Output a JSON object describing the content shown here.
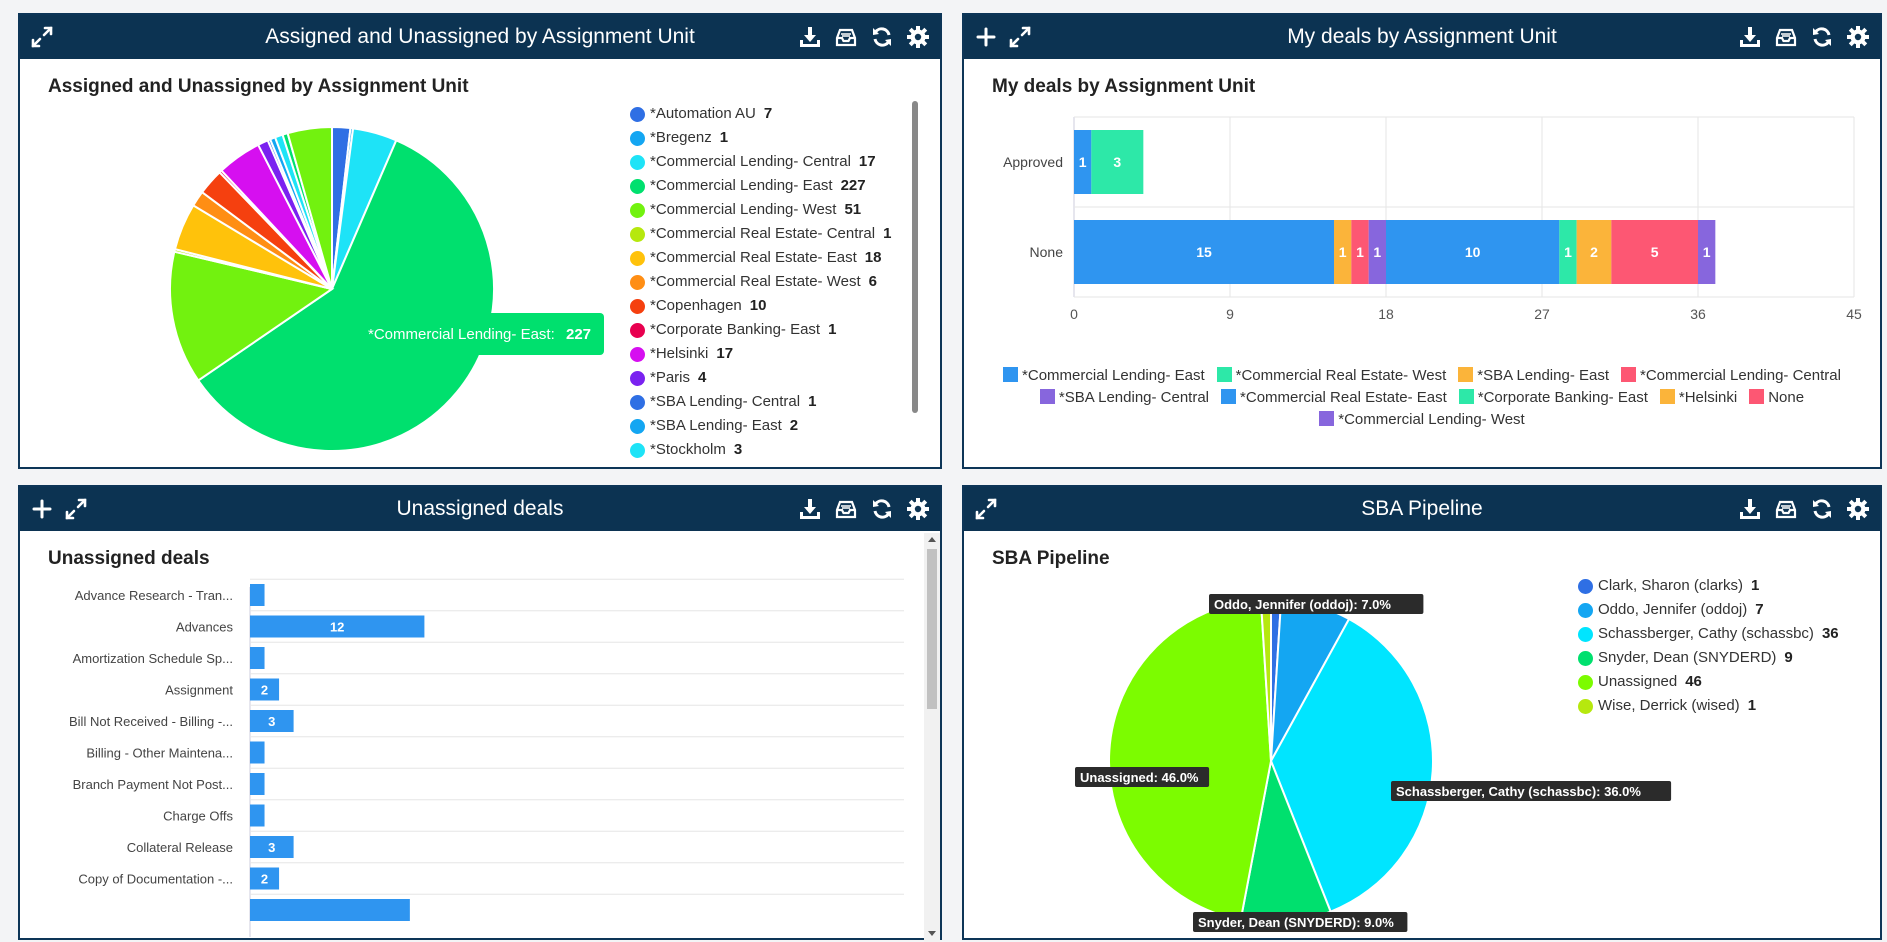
{
  "panels": {
    "p1": {
      "title": "Assigned and Unassigned by Assignment Unit",
      "chart_title": "Assigned and Unassigned by Assignment Unit"
    },
    "p2": {
      "title": "My deals by Assignment Unit",
      "chart_title": "My deals by Assignment Unit"
    },
    "p3": {
      "title": "Unassigned deals",
      "chart_title": "Unassigned deals"
    },
    "p4": {
      "title": "SBA Pipeline",
      "chart_title": "SBA Pipeline"
    }
  },
  "icons": {
    "expand": "expand-icon",
    "add": "plus-icon",
    "download": "download-icon",
    "inbox": "inbox-icon",
    "refresh": "refresh-icon",
    "settings": "gear-icon"
  },
  "chart_data": [
    {
      "type": "pie",
      "title": "Assigned and Unassigned by Assignment Unit",
      "legend_position": "right",
      "tooltip": {
        "label": "*Commercial Lending- East:",
        "value": "227"
      },
      "slices": [
        {
          "label": "*Automation AU",
          "value": 7,
          "color": "#2f6fe4"
        },
        {
          "label": "*Bregenz",
          "value": 1,
          "color": "#14a6f2"
        },
        {
          "label": "*Commercial Lending- Central",
          "value": 17,
          "color": "#1ee3f7"
        },
        {
          "label": "*Commercial Lending- East",
          "value": 227,
          "color": "#00e06e"
        },
        {
          "label": "*Commercial Lending- West",
          "value": 51,
          "color": "#72f20f"
        },
        {
          "label": "*Commercial Real Estate- Central",
          "value": 1,
          "color": "#b6e80e"
        },
        {
          "label": "*Commercial Real Estate- East",
          "value": 18,
          "color": "#ffc20b"
        },
        {
          "label": "*Commercial Real Estate- West",
          "value": 6,
          "color": "#ff8e14"
        },
        {
          "label": "*Copenhagen",
          "value": 10,
          "color": "#f5400f"
        },
        {
          "label": "*Corporate Banking- East",
          "value": 1,
          "color": "#e8004f"
        },
        {
          "label": "*Helsinki",
          "value": 17,
          "color": "#d60ff0"
        },
        {
          "label": "*Paris",
          "value": 4,
          "color": "#7a22f0"
        },
        {
          "label": "*SBA Lending- Central",
          "value": 1,
          "color": "#2f6fe4"
        },
        {
          "label": "*SBA Lending- East",
          "value": 2,
          "color": "#14a6f2"
        },
        {
          "label": "*Stockholm",
          "value": 3,
          "color": "#1ee3f7"
        },
        {
          "label": "",
          "value": 2,
          "color": "#00e06e"
        },
        {
          "label": "",
          "value": 17,
          "color": "#72f20f"
        }
      ]
    },
    {
      "type": "bar",
      "orientation": "horizontal",
      "stacked": true,
      "title": "My deals by Assignment Unit",
      "categories": [
        "Approved",
        "None"
      ],
      "xlim": [
        0,
        45
      ],
      "xticks": [
        0,
        9,
        18,
        27,
        36,
        45
      ],
      "legend_position": "bottom",
      "series": [
        {
          "name": "*Commercial Lending- East",
          "values": [
            1,
            15
          ],
          "color": "#2f95f0"
        },
        {
          "name": "*Commercial Real Estate- West",
          "values": [
            3,
            0
          ],
          "color": "#2de8a8"
        },
        {
          "name": "*SBA Lending- East",
          "values": [
            0,
            1
          ],
          "color": "#fbb43a"
        },
        {
          "name": "*Commercial Lending- Central",
          "values": [
            0,
            1
          ],
          "color": "#fd5773"
        },
        {
          "name": "*SBA Lending- Central",
          "values": [
            0,
            1
          ],
          "color": "#8766dd"
        },
        {
          "name": "*Commercial Real Estate- East",
          "values": [
            0,
            10
          ],
          "color": "#2f95f0"
        },
        {
          "name": "*Corporate Banking- East",
          "values": [
            0,
            1
          ],
          "color": "#2de8a8"
        },
        {
          "name": "*Helsinki",
          "values": [
            0,
            2
          ],
          "color": "#fbb43a"
        },
        {
          "name": "None",
          "values": [
            0,
            5
          ],
          "color": "#fd5773"
        },
        {
          "name": "*Commercial Lending- West",
          "values": [
            0,
            1
          ],
          "color": "#8766dd"
        }
      ]
    },
    {
      "type": "bar",
      "orientation": "horizontal",
      "title": "Unassigned deals",
      "xmax": 45,
      "bar_color": "#2f95f0",
      "categories": [
        "Advance Research - Tran...",
        "Advances",
        "Amortization Schedule Sp...",
        "Assignment",
        "Bill Not Received - Billing -...",
        "Billing - Other Maintena...",
        "Branch Payment Not Post...",
        "Charge Offs",
        "Collateral Release",
        "Copy of Documentation -...",
        ""
      ],
      "values": [
        1,
        12,
        1,
        2,
        3,
        1,
        1,
        1,
        3,
        2,
        11
      ],
      "data_labels": [
        "",
        "12",
        "",
        "2",
        "3",
        "",
        "",
        "",
        "3",
        "2",
        ""
      ]
    },
    {
      "type": "pie",
      "title": "SBA Pipeline",
      "legend_position": "right",
      "slices": [
        {
          "label": "Clark, Sharon (clarks)",
          "value": 1,
          "color": "#2f6fe4",
          "callout": ""
        },
        {
          "label": "Oddo, Jennifer (oddoj)",
          "value": 7,
          "color": "#14a6f2",
          "callout": "Oddo, Jennifer (oddoj): 7.0%"
        },
        {
          "label": "Schassberger, Cathy (schassbc)",
          "value": 36,
          "color": "#00e5ff",
          "callout": "Schassberger, Cathy (schassbc): 36.0%"
        },
        {
          "label": "Snyder, Dean (SNYDERD)",
          "value": 9,
          "color": "#00e06e",
          "callout": "Snyder, Dean (SNYDERD): 9.0%"
        },
        {
          "label": "Unassigned",
          "value": 46,
          "color": "#7cfc00",
          "callout": "Unassigned: 46.0%"
        },
        {
          "label": "Wise, Derrick (wised)",
          "value": 1,
          "color": "#b6e80e",
          "callout": ""
        }
      ]
    }
  ]
}
